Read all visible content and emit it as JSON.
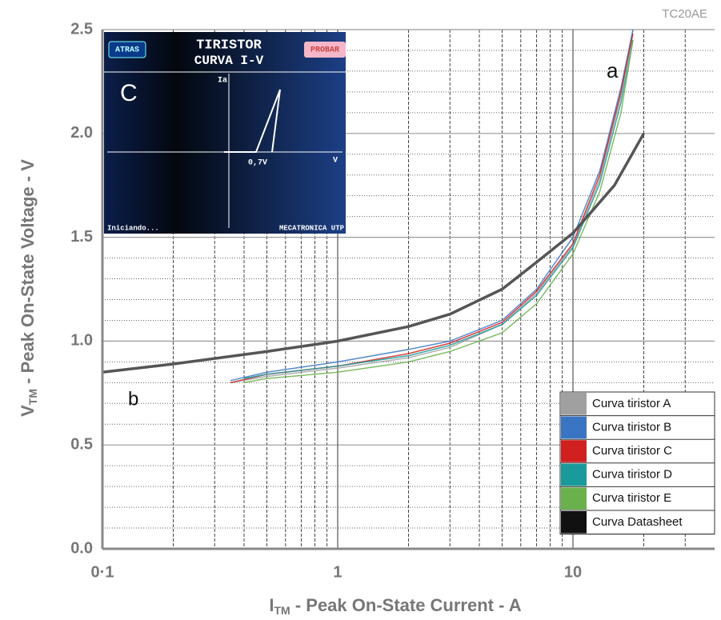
{
  "chart_data": {
    "type": "line",
    "xlabel": {
      "main": "I",
      "sub": "TM",
      "rest": " - Peak On-State Current - A"
    },
    "ylabel": {
      "main": "V",
      "sub": "TM",
      "rest": " - Peak On-State Voltage - V"
    },
    "annotations": [
      "TC20AE",
      "a",
      "b"
    ],
    "xscale": "log",
    "xlim": [
      0.1,
      40
    ],
    "ylim": [
      0,
      2.5
    ],
    "xticks": [
      {
        "value": 0.1,
        "label": "0·1"
      },
      1,
      10
    ],
    "yticks": [
      {
        "value": 0.0,
        "label": "0.0"
      },
      0.5,
      {
        "value": 1.0,
        "label": "1.0"
      },
      1.5,
      {
        "value": 2.0,
        "label": "2.0"
      },
      2.5
    ],
    "x_minor_grid": [
      0.2,
      0.3,
      0.4,
      0.5,
      0.6,
      0.7,
      0.8,
      0.9,
      2,
      3,
      4,
      5,
      6,
      7,
      8,
      9,
      20,
      30
    ],
    "y_minor_grid": [
      0.1,
      0.2,
      0.3,
      0.4,
      0.6,
      0.7,
      0.8,
      0.9,
      1.1,
      1.2,
      1.3,
      1.4,
      1.6,
      1.7,
      1.8,
      1.9,
      2.1,
      2.2,
      2.3,
      2.4
    ],
    "grid": true,
    "legend": "lower right",
    "series": [
      {
        "name": "Curva tiristor A",
        "color": "#a0a0a0",
        "x": [
          0.35,
          0.5,
          1,
          2,
          3,
          5,
          7,
          10,
          13,
          16,
          18
        ],
        "values": [
          0.8,
          0.83,
          0.87,
          0.92,
          0.97,
          1.08,
          1.23,
          1.46,
          1.78,
          2.18,
          2.5
        ]
      },
      {
        "name": "Curva tiristor B",
        "color": "#3a75c4",
        "x": [
          0.35,
          0.5,
          1,
          2,
          3,
          5,
          7,
          10,
          13,
          16,
          18
        ],
        "values": [
          0.81,
          0.85,
          0.9,
          0.96,
          1.0,
          1.1,
          1.25,
          1.5,
          1.82,
          2.22,
          2.5
        ]
      },
      {
        "name": "Curva tiristor C",
        "color": "#d02020",
        "x": [
          0.35,
          0.5,
          1,
          2,
          3,
          5,
          7,
          10,
          13,
          16,
          18
        ],
        "values": [
          0.8,
          0.84,
          0.88,
          0.94,
          0.99,
          1.09,
          1.24,
          1.47,
          1.8,
          2.2,
          2.48
        ]
      },
      {
        "name": "Curva tiristor D",
        "color": "#1a9a9a",
        "x": [
          0.4,
          0.5,
          1,
          2,
          3,
          5,
          7,
          10,
          13,
          16,
          18
        ],
        "values": [
          0.82,
          0.84,
          0.88,
          0.93,
          0.98,
          1.08,
          1.22,
          1.45,
          1.76,
          2.15,
          2.45
        ]
      },
      {
        "name": "Curva tiristor E",
        "color": "#6ab04c",
        "x": [
          0.4,
          0.5,
          1,
          2,
          3,
          5,
          7,
          10,
          13,
          16,
          18
        ],
        "values": [
          0.8,
          0.82,
          0.85,
          0.9,
          0.95,
          1.04,
          1.18,
          1.42,
          1.72,
          2.1,
          2.45
        ]
      },
      {
        "name": "Curva Datasheet",
        "color": "#111111",
        "x": [
          0.1,
          0.2,
          0.5,
          1,
          2,
          3,
          5,
          7,
          10,
          15,
          20
        ],
        "values": [
          0.85,
          0.89,
          0.95,
          1.0,
          1.07,
          1.13,
          1.25,
          1.38,
          1.52,
          1.75,
          2.0
        ]
      }
    ]
  },
  "inset": {
    "label": "C",
    "back": "ATRAS",
    "title1": "TIRISTOR",
    "title2": "CURVA I-V",
    "test": "PROBAR",
    "ia": "Ia",
    "vth": "0,7V",
    "vaxis": "V",
    "status": "Iniciando...",
    "credit": "MECATRONICA UTP"
  }
}
